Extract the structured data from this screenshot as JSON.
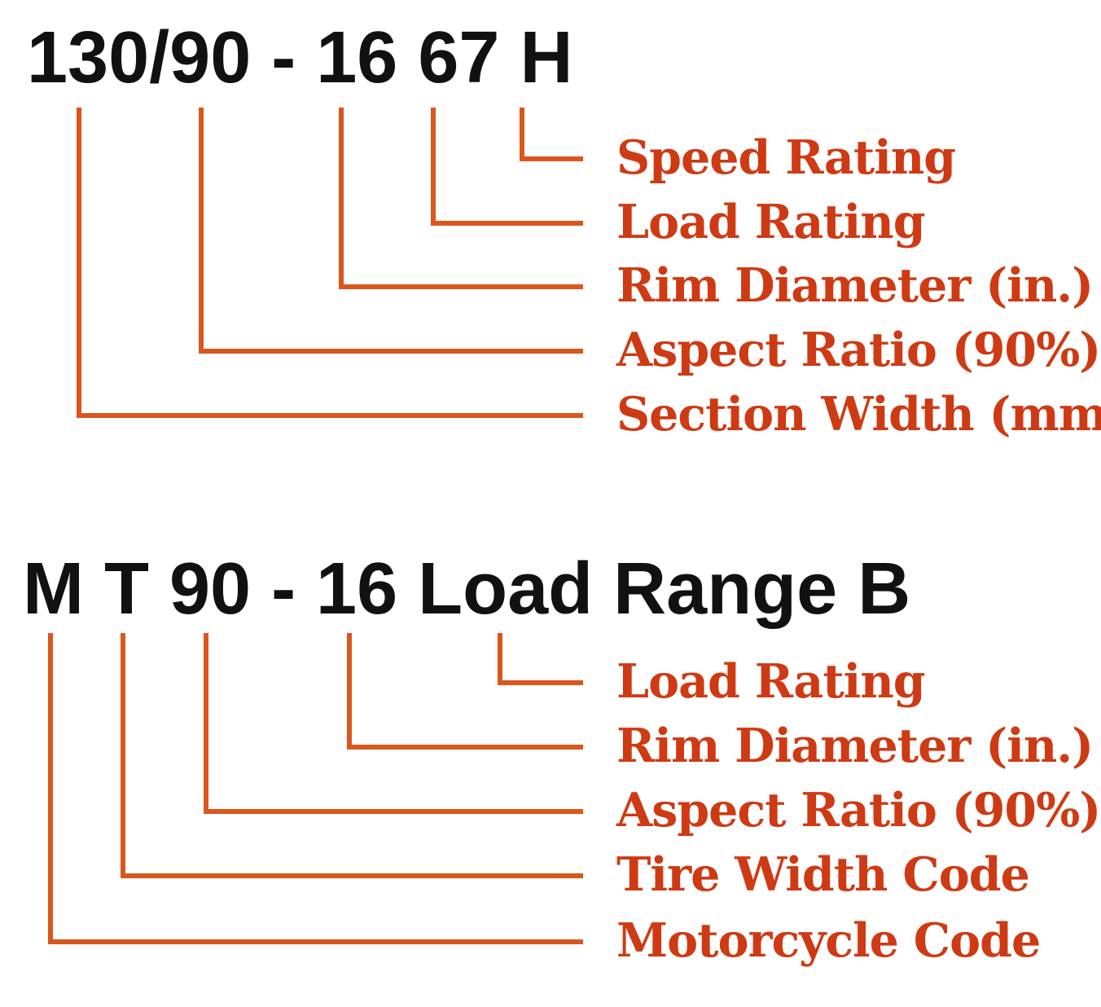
{
  "diagram": {
    "background": "#ffffff",
    "colors": {
      "heading": "#111111",
      "label": "#ce3a13",
      "line": "#d9571d"
    },
    "sections": [
      {
        "heading": "130/90 - 16 67 H",
        "items": [
          {
            "label": "Speed Rating",
            "points_to": "H"
          },
          {
            "label": "Load Rating",
            "points_to": "67"
          },
          {
            "label": "Rim Diameter (in.)",
            "points_to": "16"
          },
          {
            "label": "Aspect Ratio (90%)",
            "points_to": "90"
          },
          {
            "label": "Section Width (mm)",
            "points_to": "130"
          }
        ]
      },
      {
        "heading": "M T 90 - 16 Load Range B",
        "items": [
          {
            "label": "Load Rating",
            "points_to": "Load Range B"
          },
          {
            "label": "Rim Diameter (in.)",
            "points_to": "16"
          },
          {
            "label": "Aspect Ratio (90%)",
            "points_to": "90"
          },
          {
            "label": "Tire Width Code",
            "points_to": "T"
          },
          {
            "label": "Motorcycle Code",
            "points_to": "M"
          }
        ]
      }
    ]
  }
}
